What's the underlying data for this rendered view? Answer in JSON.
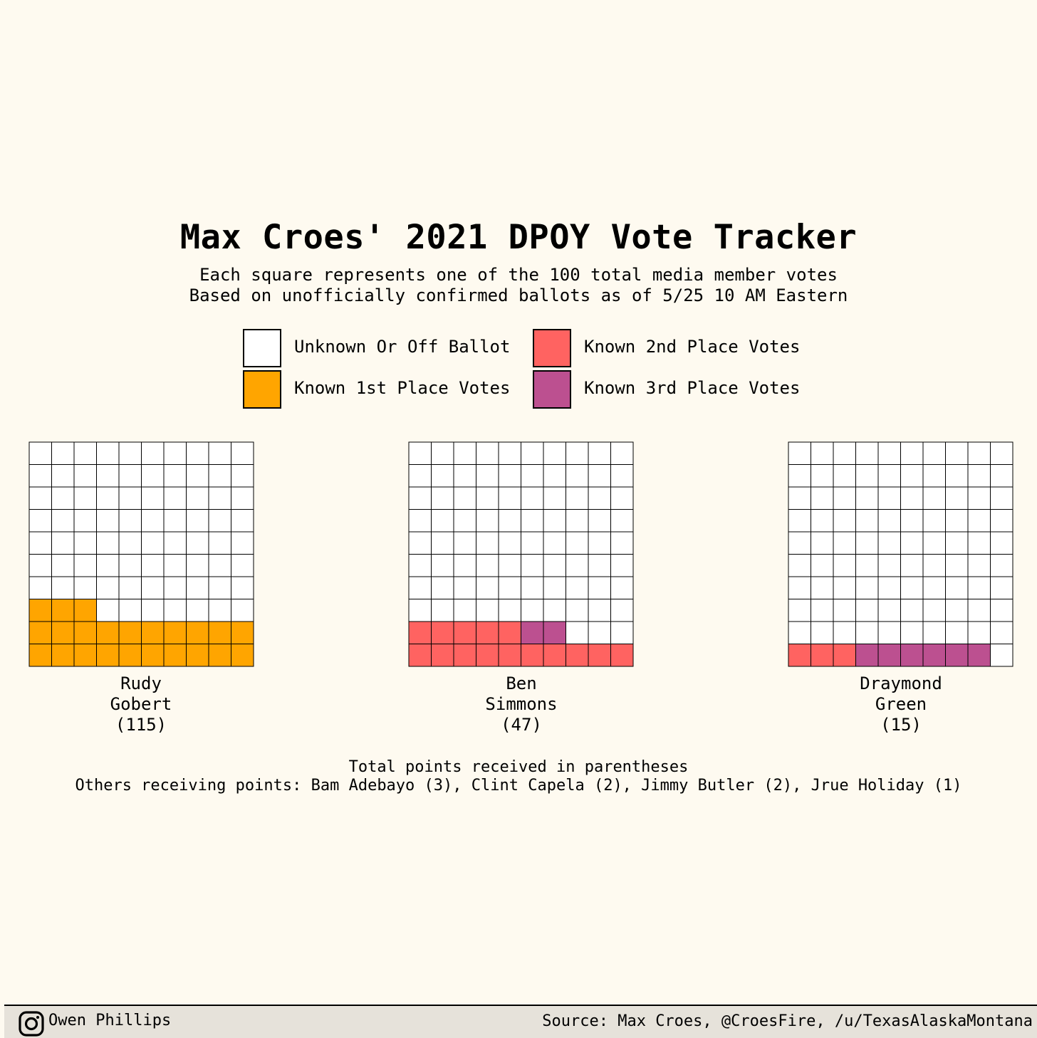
{
  "title": "Max Croes' 2021 DPOY Vote Tracker",
  "subtitle": {
    "line1": "Each square represents one of the 100 total media member votes",
    "line2": "Based on unofficially confirmed ballots as of 5/25 10 AM Eastern"
  },
  "colors": {
    "background": "#fefaf0",
    "unknown": "#ffffff",
    "first": "#ffa500",
    "second": "#ff6361",
    "third": "#bc5090",
    "gridline": "#000000"
  },
  "legend": [
    {
      "label": "Unknown Or Off Ballot",
      "color": "#ffffff"
    },
    {
      "label": "Known 1st Place Votes",
      "color": "#ffa500"
    },
    {
      "label": "Known 2nd Place Votes",
      "color": "#ff6361"
    },
    {
      "label": "Known 3rd Place Votes",
      "color": "#bc5090"
    }
  ],
  "chart_data": {
    "type": "waffle",
    "grid": "10x10",
    "total_votes": 100,
    "series_order": [
      "first",
      "second",
      "third",
      "unknown"
    ],
    "players": [
      {
        "name_line1": "Rudy",
        "name_line2": "Gobert",
        "points": "(115)",
        "first": 23,
        "second": 0,
        "third": 0
      },
      {
        "name_line1": "Ben",
        "name_line2": "Simmons",
        "points": "(47)",
        "first": 0,
        "second": 15,
        "third": 2
      },
      {
        "name_line1": "Draymond",
        "name_line2": "Green",
        "points": "(15)",
        "first": 0,
        "second": 3,
        "third": 6
      }
    ]
  },
  "caption": {
    "line1": "Total points received in parentheses",
    "line2": "Others receiving points: Bam Adebayo (3), Clint Capela (2), Jimmy Butler (2), Jrue Holiday (1)"
  },
  "footer": {
    "author": "Owen Phillips",
    "source": "Source: Max Croes, @CroesFire, /u/TexasAlaskaMontana",
    "icon": "instagram-icon"
  }
}
